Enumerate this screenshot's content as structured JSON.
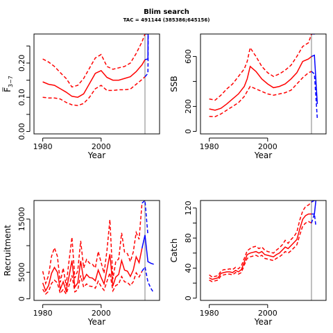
{
  "header": {
    "title": "Blim search",
    "subtitle": "TAC = 491144 (385386;645156)"
  },
  "colors": {
    "estimate": "#ff0000",
    "projection": "#0000ff",
    "ref_line": "#bebebe",
    "axis": "#000000"
  },
  "chart_data": [
    {
      "id": "f",
      "type": "line",
      "xlabel": "Year",
      "ylabel": "F̅3–7",
      "ylabel_main": "F̅",
      "ylabel_sub": "3−7",
      "xlim": [
        1977,
        2020
      ],
      "ylim": [
        -0.007,
        0.285
      ],
      "xticks": [
        1980,
        2000
      ],
      "yticks": [
        0.0,
        0.05,
        0.1,
        0.15,
        0.2,
        0.25
      ],
      "ytick_labels": [
        "0.00",
        "",
        "0.10",
        "",
        "0.20",
        ""
      ],
      "vline_x": 2015,
      "series": [
        {
          "role": "estimate",
          "style": "solid",
          "color": "#ff0000",
          "x": [
            1980,
            1982,
            1984,
            1986,
            1988,
            1990,
            1992,
            1994,
            1996,
            1998,
            2000,
            2002,
            2004,
            2006,
            2008,
            2010,
            2012,
            2014,
            2015
          ],
          "y": [
            0.145,
            0.138,
            0.135,
            0.125,
            0.115,
            0.103,
            0.1,
            0.11,
            0.14,
            0.17,
            0.178,
            0.158,
            0.15,
            0.15,
            0.155,
            0.16,
            0.175,
            0.195,
            0.21
          ]
        },
        {
          "role": "upper",
          "style": "dashed",
          "color": "#ff0000",
          "x": [
            1980,
            1982,
            1984,
            1986,
            1988,
            1990,
            1992,
            1994,
            1996,
            1998,
            2000,
            2002,
            2004,
            2006,
            2008,
            2010,
            2012,
            2014,
            2015
          ],
          "y": [
            0.212,
            0.203,
            0.19,
            0.172,
            0.155,
            0.13,
            0.135,
            0.155,
            0.185,
            0.215,
            0.225,
            0.19,
            0.182,
            0.186,
            0.19,
            0.2,
            0.228,
            0.262,
            0.285
          ]
        },
        {
          "role": "lower",
          "style": "dashed",
          "color": "#ff0000",
          "x": [
            1980,
            1982,
            1984,
            1986,
            1988,
            1990,
            1992,
            1994,
            1996,
            1998,
            2000,
            2002,
            2004,
            2006,
            2008,
            2010,
            2012,
            2014,
            2015
          ],
          "y": [
            0.1,
            0.098,
            0.098,
            0.095,
            0.085,
            0.078,
            0.076,
            0.082,
            0.1,
            0.125,
            0.135,
            0.12,
            0.12,
            0.122,
            0.122,
            0.124,
            0.138,
            0.152,
            0.16
          ]
        },
        {
          "role": "projection",
          "style": "solid",
          "color": "#0000ff",
          "x": [
            2015,
            2016,
            2016.05,
            2016.1
          ],
          "y": [
            0.21,
            0.212,
            0.28,
            0.285
          ]
        },
        {
          "role": "projection-upper",
          "style": "dashed",
          "color": "#0000ff",
          "x": [
            2015,
            2016,
            2016.05
          ],
          "y": [
            0.285,
            0.285,
            0.285
          ]
        },
        {
          "role": "projection-lower",
          "style": "dashed",
          "color": "#0000ff",
          "x": [
            2015,
            2016,
            2016.05,
            2016.1
          ],
          "y": [
            0.16,
            0.17,
            0.2,
            0.285
          ]
        }
      ]
    },
    {
      "id": "ssb",
      "type": "line",
      "xlabel": "Year",
      "ylabel": "SSB",
      "xlim": [
        1977,
        2020
      ],
      "ylim": [
        -20,
        780
      ],
      "xticks": [
        1980,
        2000
      ],
      "yticks": [
        0,
        200,
        400,
        600
      ],
      "ytick_labels": [
        "0",
        "200",
        "",
        "600"
      ],
      "vline_x": 2015,
      "series": [
        {
          "role": "estimate",
          "style": "solid",
          "color": "#ff0000",
          "x": [
            1980,
            1982,
            1984,
            1986,
            1988,
            1990,
            1992,
            1993,
            1994,
            1996,
            1998,
            2000,
            2002,
            2004,
            2006,
            2008,
            2010,
            2012,
            2014,
            2015
          ],
          "y": [
            180,
            170,
            185,
            220,
            260,
            300,
            360,
            420,
            520,
            480,
            420,
            380,
            350,
            360,
            380,
            420,
            470,
            560,
            580,
            600
          ]
        },
        {
          "role": "upper",
          "style": "dashed",
          "color": "#ff0000",
          "x": [
            1980,
            1982,
            1984,
            1986,
            1988,
            1990,
            1992,
            1993,
            1994,
            1996,
            1998,
            2000,
            2002,
            2004,
            2006,
            2008,
            2010,
            2012,
            2014,
            2015
          ],
          "y": [
            260,
            250,
            290,
            340,
            380,
            440,
            500,
            560,
            670,
            600,
            520,
            470,
            440,
            460,
            490,
            530,
            600,
            680,
            710,
            780
          ]
        },
        {
          "role": "lower",
          "style": "dashed",
          "color": "#ff0000",
          "x": [
            1980,
            1982,
            1984,
            1986,
            1988,
            1990,
            1992,
            1993,
            1994,
            1996,
            1998,
            2000,
            2002,
            2004,
            2006,
            2008,
            2010,
            2012,
            2014,
            2015
          ],
          "y": [
            120,
            118,
            140,
            170,
            200,
            230,
            280,
            320,
            360,
            340,
            320,
            300,
            290,
            300,
            310,
            330,
            380,
            430,
            470,
            480
          ]
        },
        {
          "role": "projection",
          "style": "solid",
          "color": "#0000ff",
          "x": [
            2015,
            2016,
            2017
          ],
          "y": [
            600,
            610,
            220
          ]
        },
        {
          "role": "projection-upper",
          "style": "dashed",
          "color": "#0000ff",
          "x": [
            2015,
            2016,
            2016.5
          ],
          "y": [
            780,
            780,
            780
          ]
        },
        {
          "role": "projection-lower",
          "style": "dashed",
          "color": "#0000ff",
          "x": [
            2015,
            2016,
            2017
          ],
          "y": [
            480,
            460,
            100
          ]
        }
      ]
    },
    {
      "id": "recruitment",
      "type": "line",
      "xlabel": "Year",
      "ylabel": "Recruitment",
      "xlim": [
        1977,
        2020
      ],
      "ylim": [
        -300,
        18500
      ],
      "xticks": [
        1980,
        2000
      ],
      "yticks": [
        0,
        5000,
        10000,
        15000
      ],
      "ytick_labels": [
        "0",
        "5000",
        "",
        "15000"
      ],
      "vline_x": 2015,
      "series": [
        {
          "role": "estimate",
          "style": "solid",
          "color": "#ff0000",
          "x": [
            1980,
            1981,
            1982,
            1983,
            1984,
            1985,
            1986,
            1987,
            1988,
            1989,
            1990,
            1991,
            1992,
            1993,
            1994,
            1995,
            1996,
            1997,
            1998,
            1999,
            2000,
            2001,
            2002,
            2003,
            2004,
            2005,
            2006,
            2007,
            2008,
            2009,
            2010,
            2011,
            2012,
            2013,
            2014
          ],
          "y": [
            3000,
            1500,
            2500,
            4800,
            5900,
            5000,
            1800,
            3200,
            1500,
            4200,
            7200,
            2200,
            3000,
            7100,
            3600,
            4600,
            4000,
            3900,
            3400,
            5400,
            4000,
            2800,
            5500,
            8400,
            2400,
            4100,
            4600,
            7200,
            5400,
            5200,
            4200,
            5400,
            7900,
            6800,
            9500
          ]
        },
        {
          "role": "upper",
          "style": "dashed",
          "color": "#ff0000",
          "x": [
            1980,
            1981,
            1982,
            1983,
            1984,
            1985,
            1986,
            1987,
            1988,
            1989,
            1990,
            1991,
            1992,
            1993,
            1994,
            1995,
            1996,
            1997,
            1998,
            1999,
            2000,
            2001,
            2002,
            2003,
            2004,
            2005,
            2006,
            2007,
            2008,
            2009,
            2010,
            2011,
            2012,
            2013,
            2014
          ],
          "y": [
            5200,
            2900,
            4400,
            8000,
            9600,
            8000,
            3100,
            5800,
            2500,
            7100,
            11600,
            3900,
            5300,
            10900,
            5800,
            7400,
            6700,
            6500,
            5800,
            8900,
            6800,
            4800,
            9100,
            14900,
            3700,
            7000,
            7500,
            12400,
            8800,
            8500,
            7000,
            8800,
            12500,
            11200,
            18000
          ]
        },
        {
          "role": "lower",
          "style": "dashed",
          "color": "#ff0000",
          "x": [
            1980,
            1981,
            1982,
            1983,
            1984,
            1985,
            1986,
            1987,
            1988,
            1989,
            1990,
            1991,
            1992,
            1993,
            1994,
            1995,
            1996,
            1997,
            1998,
            1999,
            2000,
            2001,
            2002,
            2003,
            2004,
            2005,
            2006,
            2007,
            2008,
            2009,
            2010,
            2011,
            2012,
            2013,
            2014
          ],
          "y": [
            1800,
            900,
            1400,
            2900,
            3500,
            3000,
            1000,
            1800,
            900,
            2500,
            4400,
            1300,
            1700,
            4400,
            2200,
            2800,
            2400,
            2300,
            2000,
            3300,
            2300,
            1600,
            3300,
            4900,
            1500,
            2500,
            2800,
            4200,
            3200,
            3100,
            2500,
            3200,
            4900,
            4100,
            5200
          ]
        },
        {
          "role": "projection",
          "style": "solid",
          "color": "#0000ff",
          "x": [
            2014,
            2015,
            2016,
            2017,
            2018
          ],
          "y": [
            9500,
            12000,
            7000,
            6700,
            6500
          ]
        },
        {
          "role": "projection-upper",
          "style": "dashed",
          "color": "#0000ff",
          "x": [
            2014,
            2015,
            2016
          ],
          "y": [
            18000,
            18500,
            12000
          ]
        },
        {
          "role": "projection-lower",
          "style": "dashed",
          "color": "#0000ff",
          "x": [
            2014,
            2015,
            2016,
            2017,
            2018
          ],
          "y": [
            5200,
            6000,
            3200,
            2000,
            1100
          ]
        }
      ]
    },
    {
      "id": "catch",
      "type": "line",
      "xlabel": "Year",
      "ylabel": "Catch",
      "xlim": [
        1977,
        2020
      ],
      "ylim": [
        -3,
        130
      ],
      "xticks": [
        1980,
        2000
      ],
      "yticks": [
        0,
        20,
        40,
        60,
        80,
        100,
        120
      ],
      "ytick_labels": [
        "0",
        "",
        "40",
        "",
        "80",
        "",
        "120"
      ],
      "vline_x": 2015,
      "series": [
        {
          "role": "estimate",
          "style": "solid",
          "color": "#ff0000",
          "x": [
            1980,
            1981,
            1982,
            1983,
            1984,
            1985,
            1986,
            1987,
            1988,
            1989,
            1990,
            1991,
            1992,
            1993,
            1994,
            1995,
            1996,
            1997,
            1998,
            1999,
            2000,
            2001,
            2002,
            2003,
            2004,
            2005,
            2006,
            2007,
            2008,
            2009,
            2010,
            2011,
            2012,
            2013,
            2014,
            2015
          ],
          "y": [
            27,
            25,
            26,
            27,
            33,
            34,
            35,
            35,
            34,
            37,
            35,
            38,
            48,
            58,
            60,
            61,
            62,
            60,
            62,
            58,
            57,
            56,
            55,
            58,
            60,
            64,
            68,
            66,
            70,
            74,
            78,
            92,
            105,
            110,
            112,
            112
          ]
        },
        {
          "role": "upper",
          "style": "dashed",
          "color": "#ff0000",
          "x": [
            1980,
            1981,
            1982,
            1983,
            1984,
            1985,
            1986,
            1987,
            1988,
            1989,
            1990,
            1991,
            1992,
            1993,
            1994,
            1995,
            1996,
            1997,
            1998,
            1999,
            2000,
            2001,
            2002,
            2003,
            2004,
            2005,
            2006,
            2007,
            2008,
            2009,
            2010,
            2011,
            2012,
            2013,
            2014,
            2015
          ],
          "y": [
            31,
            28,
            29,
            30,
            36,
            38,
            38,
            39,
            38,
            41,
            39,
            43,
            53,
            63,
            66,
            68,
            69,
            66,
            68,
            64,
            62,
            61,
            60,
            64,
            67,
            71,
            77,
            73,
            78,
            82,
            88,
            104,
            116,
            122,
            124,
            128
          ]
        },
        {
          "role": "lower",
          "style": "dashed",
          "color": "#ff0000",
          "x": [
            1980,
            1981,
            1982,
            1983,
            1984,
            1985,
            1986,
            1987,
            1988,
            1989,
            1990,
            1991,
            1992,
            1993,
            1994,
            1995,
            1996,
            1997,
            1998,
            1999,
            2000,
            2001,
            2002,
            2003,
            2004,
            2005,
            2006,
            2007,
            2008,
            2009,
            2010,
            2011,
            2012,
            2013,
            2014,
            2015
          ],
          "y": [
            24,
            22,
            23,
            24,
            30,
            31,
            32,
            32,
            31,
            34,
            32,
            34,
            44,
            53,
            55,
            56,
            57,
            55,
            57,
            53,
            52,
            51,
            50,
            53,
            55,
            58,
            62,
            60,
            63,
            67,
            71,
            84,
            96,
            100,
            102,
            100
          ]
        },
        {
          "role": "projection",
          "style": "solid",
          "color": "#0000ff",
          "x": [
            2015,
            2016,
            2016.5
          ],
          "y": [
            112,
            112,
            130
          ]
        },
        {
          "role": "projection-upper",
          "style": "dashed",
          "color": "#0000ff",
          "x": [
            2015,
            2016,
            2016.5
          ],
          "y": [
            128,
            130,
            130
          ]
        },
        {
          "role": "projection-lower",
          "style": "dashed",
          "color": "#0000ff",
          "x": [
            2015,
            2016,
            2016.5
          ],
          "y": [
            100,
            112,
            96
          ]
        }
      ]
    }
  ]
}
